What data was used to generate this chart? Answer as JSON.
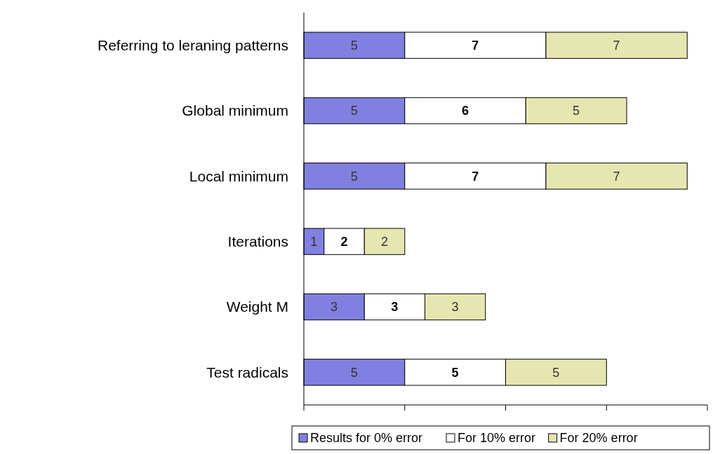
{
  "chart_data": {
    "type": "bar",
    "orientation": "horizontal",
    "stacked": true,
    "data_labels": true,
    "legend": "bottom",
    "tick_labels": "y",
    "grid": false,
    "categories": [
      "Referring to leraning patterns",
      "Global minimum",
      "Local minimum",
      "Iterations",
      "Weight M",
      "Test radicals"
    ],
    "xlim": [
      0,
      20
    ],
    "xticks": [
      {
        "value": 0,
        "label": null
      },
      {
        "value": 5,
        "label": null
      },
      {
        "value": 10,
        "label": null
      },
      {
        "value": 15,
        "label": null
      },
      {
        "value": 20,
        "label": null
      }
    ],
    "series": [
      {
        "name": "Results for 0% error",
        "color": "#8080e0",
        "values": [
          5,
          5,
          5,
          1,
          3,
          5
        ]
      },
      {
        "name": "For 10% error",
        "color": "#ffffff",
        "values": [
          7,
          6,
          7,
          2,
          3,
          5
        ]
      },
      {
        "name": "For 20% error",
        "color": "#e6e6b0",
        "values": [
          7,
          5,
          7,
          2,
          3,
          5
        ]
      }
    ]
  }
}
